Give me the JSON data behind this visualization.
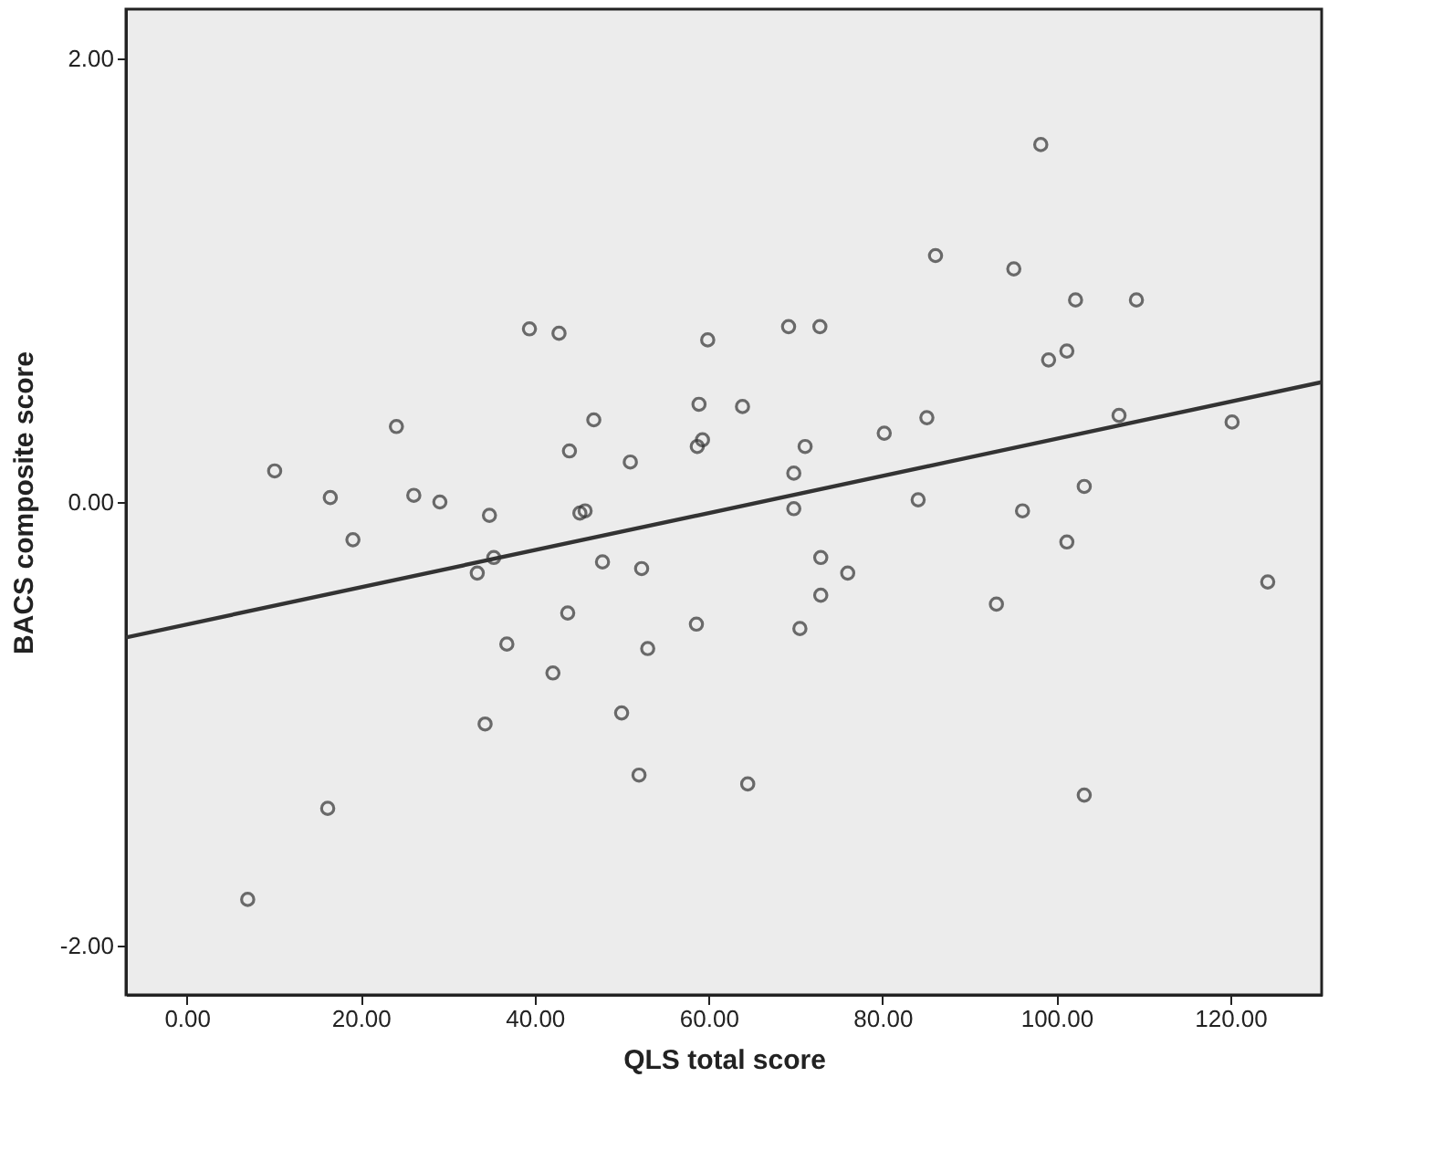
{
  "chart_data": {
    "type": "scatter",
    "xlabel": "QLS total score",
    "ylabel": "BACS composite score",
    "xlim": [
      -7,
      130.5
    ],
    "ylim": [
      -2.22,
      2.22
    ],
    "xticks": [
      {
        "value": 0,
        "label": "0.00"
      },
      {
        "value": 20,
        "label": "20.00"
      },
      {
        "value": 40,
        "label": "40.00"
      },
      {
        "value": 60,
        "label": "60.00"
      },
      {
        "value": 80,
        "label": "80.00"
      },
      {
        "value": 100,
        "label": "100.00"
      },
      {
        "value": 120,
        "label": "120.00"
      }
    ],
    "yticks": [
      {
        "value": -2,
        "label": "-2.00"
      },
      {
        "value": 0,
        "label": "0.00"
      },
      {
        "value": 2,
        "label": "2.00"
      }
    ],
    "grid": false,
    "series": [
      {
        "color": "#333333",
        "marker": "circle",
        "x": [
          10.1,
          16.5,
          19.1,
          24.1,
          26.1,
          29.1,
          34.8,
          39.4,
          42.8,
          44.0,
          46.8,
          45.2,
          45.8,
          51.0,
          58.9,
          58.7,
          59.3,
          59.9,
          63.9,
          69.2,
          72.8,
          69.8,
          71.1,
          69.8,
          80.2,
          85.1,
          86.1,
          84.1,
          95.1,
          98.2,
          96.1,
          99.1,
          101.2,
          102.2,
          109.2,
          107.2,
          103.2,
          101.2,
          120.2,
          35.3,
          33.4,
          47.8,
          52.3,
          72.9,
          76.0,
          72.9,
          93.1,
          124.3,
          43.8,
          58.6,
          70.5,
          36.8,
          53.0,
          42.1,
          50.0,
          34.3,
          52.0,
          64.5,
          103.2,
          16.2,
          7.0
        ],
        "values": [
          0.14,
          0.02,
          -0.17,
          0.34,
          0.03,
          0.0,
          -0.06,
          0.78,
          0.76,
          0.23,
          0.37,
          -0.05,
          -0.04,
          0.18,
          0.44,
          0.25,
          0.28,
          0.73,
          0.43,
          0.79,
          0.79,
          0.13,
          0.25,
          -0.03,
          0.31,
          0.38,
          1.11,
          0.01,
          1.05,
          1.61,
          -0.04,
          0.64,
          0.68,
          0.91,
          0.91,
          0.39,
          0.07,
          -0.18,
          0.36,
          -0.25,
          -0.32,
          -0.27,
          -0.3,
          -0.25,
          -0.32,
          -0.42,
          -0.46,
          -0.36,
          -0.5,
          -0.55,
          -0.57,
          -0.64,
          -0.66,
          -0.77,
          -0.95,
          -1.0,
          -1.23,
          -1.27,
          -1.32,
          -1.38,
          -1.79
        ]
      },
      {
        "type": "line",
        "color": "#333333",
        "line_style": "solid",
        "marker": "none",
        "x": [
          -7,
          130.5
        ],
        "values": [
          -0.61,
          0.54
        ]
      }
    ]
  }
}
